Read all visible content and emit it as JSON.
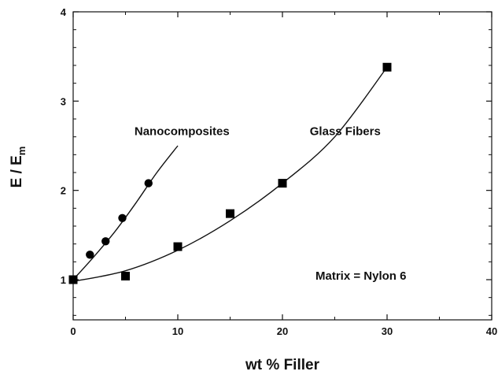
{
  "chart_data": {
    "type": "scatter",
    "title": "",
    "xlabel": "wt % Filler",
    "ylabel_main": "E / E",
    "ylabel_sub": "m",
    "xlim": [
      0,
      40
    ],
    "ylim": [
      0.55,
      4
    ],
    "x_ticks": [
      "0",
      "10",
      "20",
      "30",
      "40"
    ],
    "y_ticks": [
      "1",
      "2",
      "3",
      "4"
    ],
    "grid": false,
    "series": [
      {
        "name": "Nanocomposites",
        "marker": "circle",
        "points": [
          {
            "x": 0,
            "y": 1.0
          },
          {
            "x": 1.6,
            "y": 1.28
          },
          {
            "x": 3.1,
            "y": 1.43
          },
          {
            "x": 4.7,
            "y": 1.69
          },
          {
            "x": 7.2,
            "y": 2.08
          }
        ],
        "fit_curve": [
          {
            "x": 0,
            "y": 1.0
          },
          {
            "x": 2,
            "y": 1.26
          },
          {
            "x": 4,
            "y": 1.54
          },
          {
            "x": 6,
            "y": 1.86
          },
          {
            "x": 8,
            "y": 2.2
          },
          {
            "x": 10,
            "y": 2.5
          }
        ]
      },
      {
        "name": "Glass Fibers",
        "marker": "square",
        "points": [
          {
            "x": 0,
            "y": 1.0
          },
          {
            "x": 5,
            "y": 1.04
          },
          {
            "x": 10,
            "y": 1.37
          },
          {
            "x": 15,
            "y": 1.74
          },
          {
            "x": 20,
            "y": 2.08
          },
          {
            "x": 30,
            "y": 3.38
          }
        ],
        "fit_curve": [
          {
            "x": 0,
            "y": 0.98
          },
          {
            "x": 5,
            "y": 1.1
          },
          {
            "x": 10,
            "y": 1.33
          },
          {
            "x": 15,
            "y": 1.66
          },
          {
            "x": 20,
            "y": 2.08
          },
          {
            "x": 25,
            "y": 2.6
          },
          {
            "x": 30,
            "y": 3.38
          }
        ]
      }
    ],
    "annotations": [
      {
        "text": "Nanocomposites",
        "x": 10.4,
        "y": 2.62
      },
      {
        "text": "Glass Fibers",
        "x": 26.0,
        "y": 2.62
      },
      {
        "text": "Matrix = Nylon 6",
        "x": 27.5,
        "y": 1.0
      }
    ]
  }
}
